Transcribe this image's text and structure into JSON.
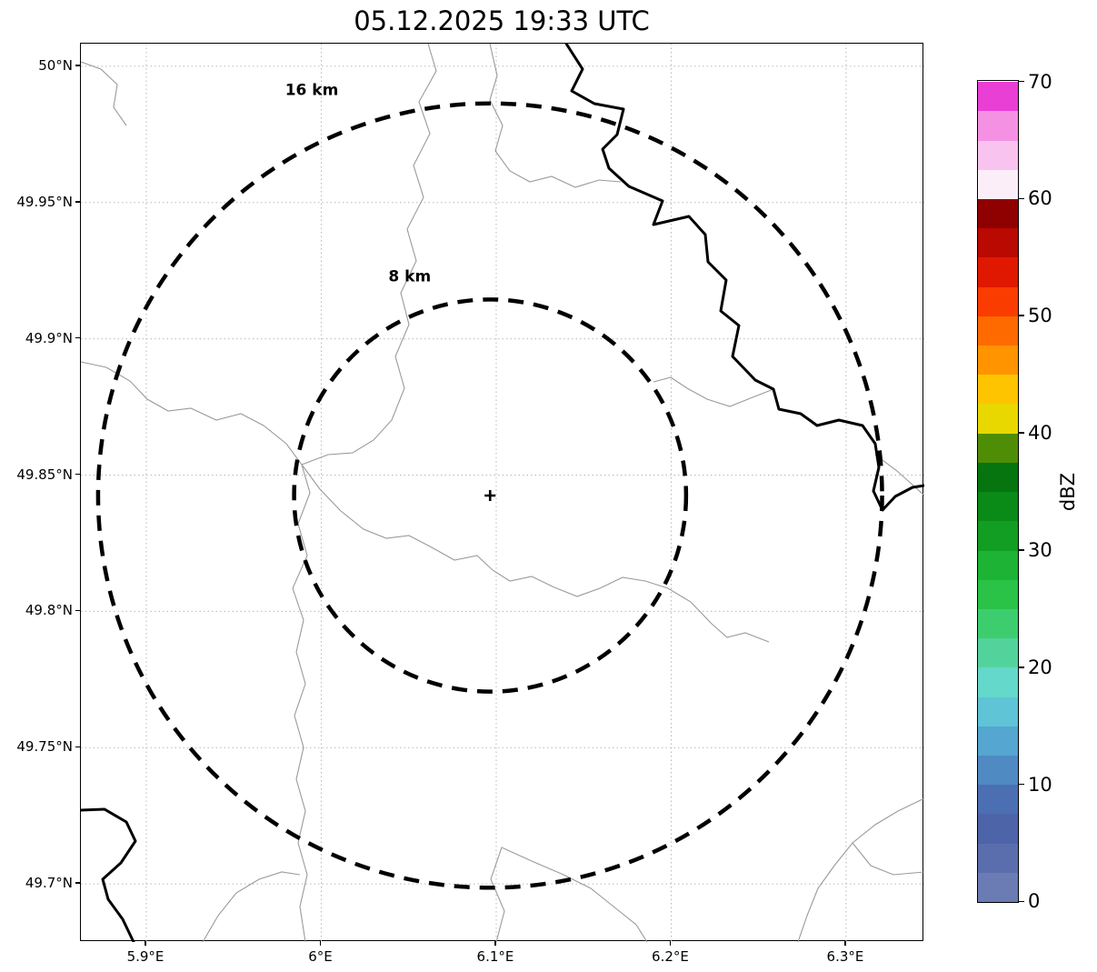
{
  "title": "05.12.2025 19:33 UTC",
  "chart_data": {
    "type": "map",
    "subtype": "radar-range-ring-map",
    "title": "05.12.2025 19:33 UTC",
    "x_axis": {
      "range": [
        5.8626,
        6.3447
      ],
      "ticks": [
        {
          "value": 5.9,
          "label": "5.9°E"
        },
        {
          "value": 6.0,
          "label": "6°E"
        },
        {
          "value": 6.1,
          "label": "6.1°E"
        },
        {
          "value": 6.2,
          "label": "6.2°E"
        },
        {
          "value": 6.3,
          "label": "6.3°E"
        }
      ]
    },
    "y_axis": {
      "range": [
        49.6787,
        50.0083
      ],
      "ticks": [
        {
          "value": 50.0,
          "label": "50°N"
        },
        {
          "value": 49.95,
          "label": "49.95°N"
        },
        {
          "value": 49.9,
          "label": "49.9°N"
        },
        {
          "value": 49.85,
          "label": "49.85°N"
        },
        {
          "value": 49.8,
          "label": "49.8°N"
        },
        {
          "value": 49.75,
          "label": "49.75°N"
        },
        {
          "value": 49.7,
          "label": "49.7°N"
        }
      ]
    },
    "grid": {
      "visible": true,
      "style": "dotted",
      "color": "#b8b8b8"
    },
    "center": {
      "lon": 6.0965,
      "lat": 49.8425,
      "marker": "+"
    },
    "range_rings": [
      {
        "radius_km": 16,
        "label": "16 km"
      },
      {
        "radius_km": 8,
        "label": "8 km"
      }
    ],
    "km_per_degree_lat": 111.2,
    "map_layers": {
      "thin_border_color": "#9a9a9a",
      "thick_border_color": "#000000",
      "black_paths": [
        "M534,0 L552,28 L540,52 L565,66 L597,72 L590,100 L574,116 L581,137 L603,157 L640,173 L630,199 L669,190 L687,210 L690,240 L710,260 L704,294 L724,310 L717,344 L742,370 L762,380 L768,402 L792,407 L810,420 L834,414 L860,420 L874,440 L878,466 L872,492 L882,513 L896,498 L915,488 L928,486",
        "M0,843 L26,842 L50,856 L60,877 L44,901 L24,919 L30,941 L46,963 L58,988"
      ],
      "gray_paths": [
        "M382,0 L391,30 L372,64 L384,99 L366,134 L377,169 L359,204 L369,239 L352,274 L361,309 L346,344 L356,379 L342,414 L322,436 L299,450 L272,452 L243,463",
        "M450,0 L458,35 L450,62 L464,90 L456,118 L472,140 L494,152 L518,146 L544,158 L570,150 L594,152",
        "M0,350 L28,356 L54,371 L73,391 L96,404 L121,401 L149,414 L176,407 L201,420 L226,440 L243,463",
        "M243,463 L252,494 L239,528 L249,563 L233,599 L245,634 L237,669 L247,704 L235,739 L245,774 L237,809 L247,844 L239,879 L249,914 L241,949 L247,988",
        "M243,463 L263,490 L286,514 L311,534 L336,544 L361,541 L386,554 L411,568 L436,563 L453,579 L472,591 L496,586 L521,598 L546,608 L571,599 L596,587 L621,591 L646,599",
        "M646,599 L671,614 L694,638 L711,653 L731,648 L757,658",
        "M762,380 L739,389 L714,399 L689,391 L667,379 L649,367 L630,372",
        "M928,830 L899,844 L874,859 L849,879 L829,904 L811,929 L799,959 L789,988",
        "M849,879 L869,904 L894,914 L928,911",
        "M457,988 L466,954 L451,919 L463,884 L496,899 L531,914 L561,929 L586,949 L611,969 L623,988",
        "M874,452 L898,470 L916,486 L928,497",
        "M134,988 L151,959 L171,934 L196,919 L221,911 L241,914",
        "M0,20 L22,28 L40,45 L36,70 L50,90"
      ]
    },
    "colorbar": {
      "label": "dBZ",
      "min": 0,
      "max": 70,
      "tick_values": [
        0,
        10,
        20,
        30,
        40,
        50,
        60,
        70
      ],
      "colors_bottom_to_top": [
        "#6b7cb4",
        "#5a6eae",
        "#4d64a9",
        "#4b6fb2",
        "#4f8ac3",
        "#55a6d0",
        "#5ec4d6",
        "#63d8cb",
        "#53d39c",
        "#3ecd6e",
        "#2ac348",
        "#1db334",
        "#129d23",
        "#0a8a16",
        "#067510",
        "#4f8d07",
        "#e8d800",
        "#ffc400",
        "#ff9400",
        "#ff6a00",
        "#fa3c00",
        "#e01800",
        "#ba0900",
        "#8f0000",
        "#fceef9",
        "#f9c3ef",
        "#f591e3",
        "#ea3fd4"
      ]
    }
  }
}
